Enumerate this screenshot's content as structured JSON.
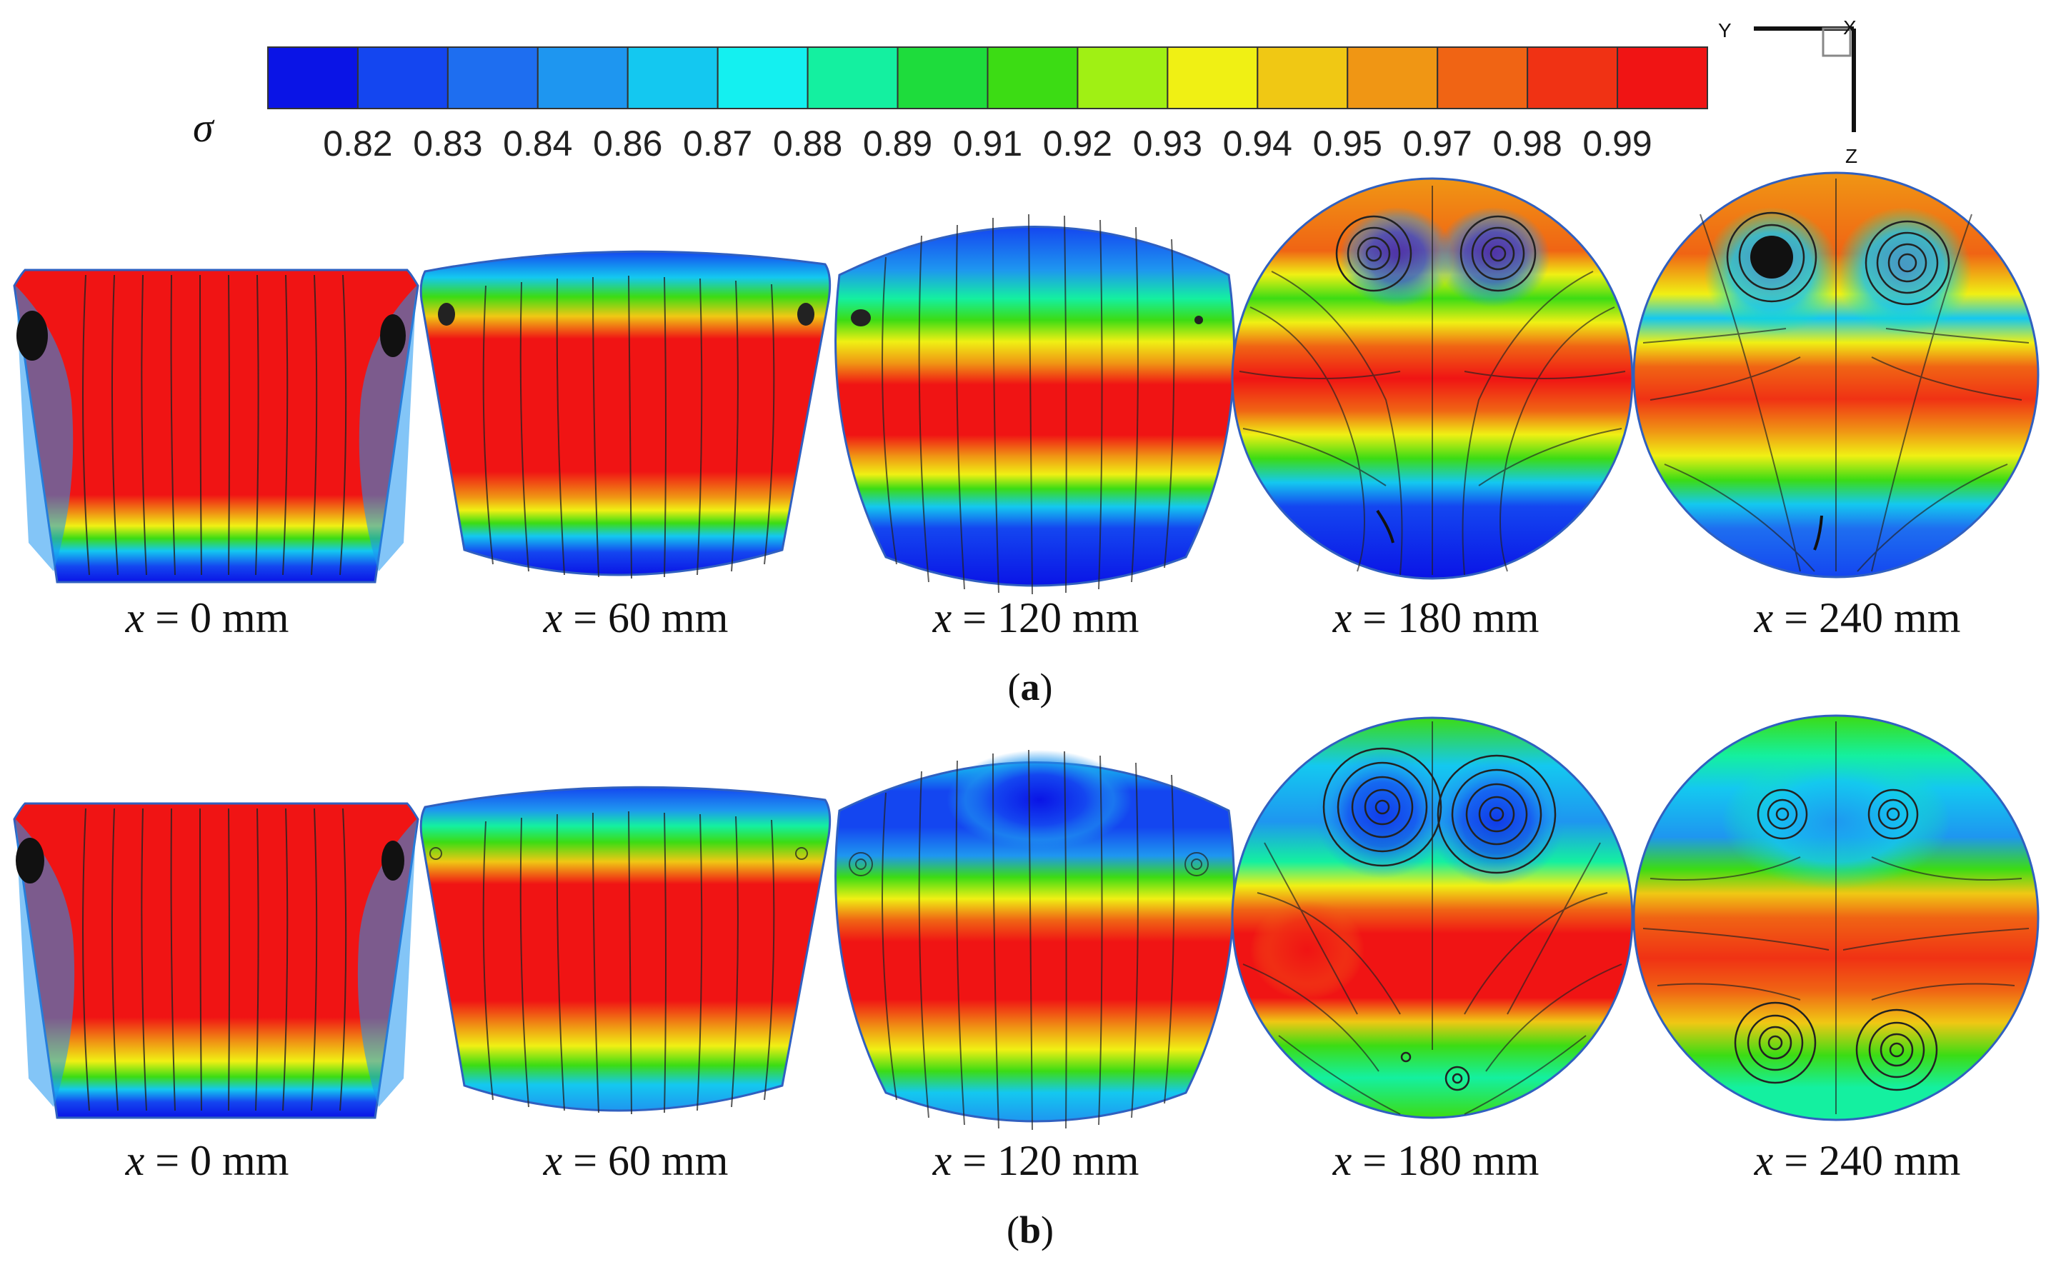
{
  "colorbar": {
    "symbol": "σ",
    "tick_labels": [
      "0.82",
      "0.83",
      "0.84",
      "0.86",
      "0.87",
      "0.88",
      "0.89",
      "0.91",
      "0.92",
      "0.93",
      "0.94",
      "0.95",
      "0.97",
      "0.98",
      "0.99"
    ],
    "colors": [
      "#0a14e6",
      "#1446f0",
      "#1e6ef0",
      "#1e96f0",
      "#14c8f0",
      "#14f0f0",
      "#14f0a0",
      "#1edc3c",
      "#3cdc14",
      "#a0f014",
      "#f0f014",
      "#f0c814",
      "#f09614",
      "#f06414",
      "#f03214",
      "#f01414"
    ]
  },
  "axes": {
    "y": "Y",
    "x": "X",
    "z": "Z"
  },
  "rows": [
    {
      "label_left": "(",
      "label_bold": "a",
      "label_right": ")",
      "panels": [
        {
          "prefix": "x",
          "value": " = 0 mm",
          "shape": "trapezoid"
        },
        {
          "prefix": "x",
          "value": " = 60 mm",
          "shape": "barrel"
        },
        {
          "prefix": "x",
          "value": " = 120 mm",
          "shape": "near-circle"
        },
        {
          "prefix": "x",
          "value": " = 180 mm",
          "shape": "circle"
        },
        {
          "prefix": "x",
          "value": " = 240 mm",
          "shape": "circle"
        }
      ]
    },
    {
      "label_left": "(",
      "label_bold": "b",
      "label_right": ")",
      "panels": [
        {
          "prefix": "x",
          "value": " = 0 mm",
          "shape": "trapezoid"
        },
        {
          "prefix": "x",
          "value": " = 60 mm",
          "shape": "barrel"
        },
        {
          "prefix": "x",
          "value": " = 120 mm",
          "shape": "near-circle"
        },
        {
          "prefix": "x",
          "value": " = 180 mm",
          "shape": "circle"
        },
        {
          "prefix": "x",
          "value": " = 240 mm",
          "shape": "circle"
        }
      ]
    }
  ]
}
